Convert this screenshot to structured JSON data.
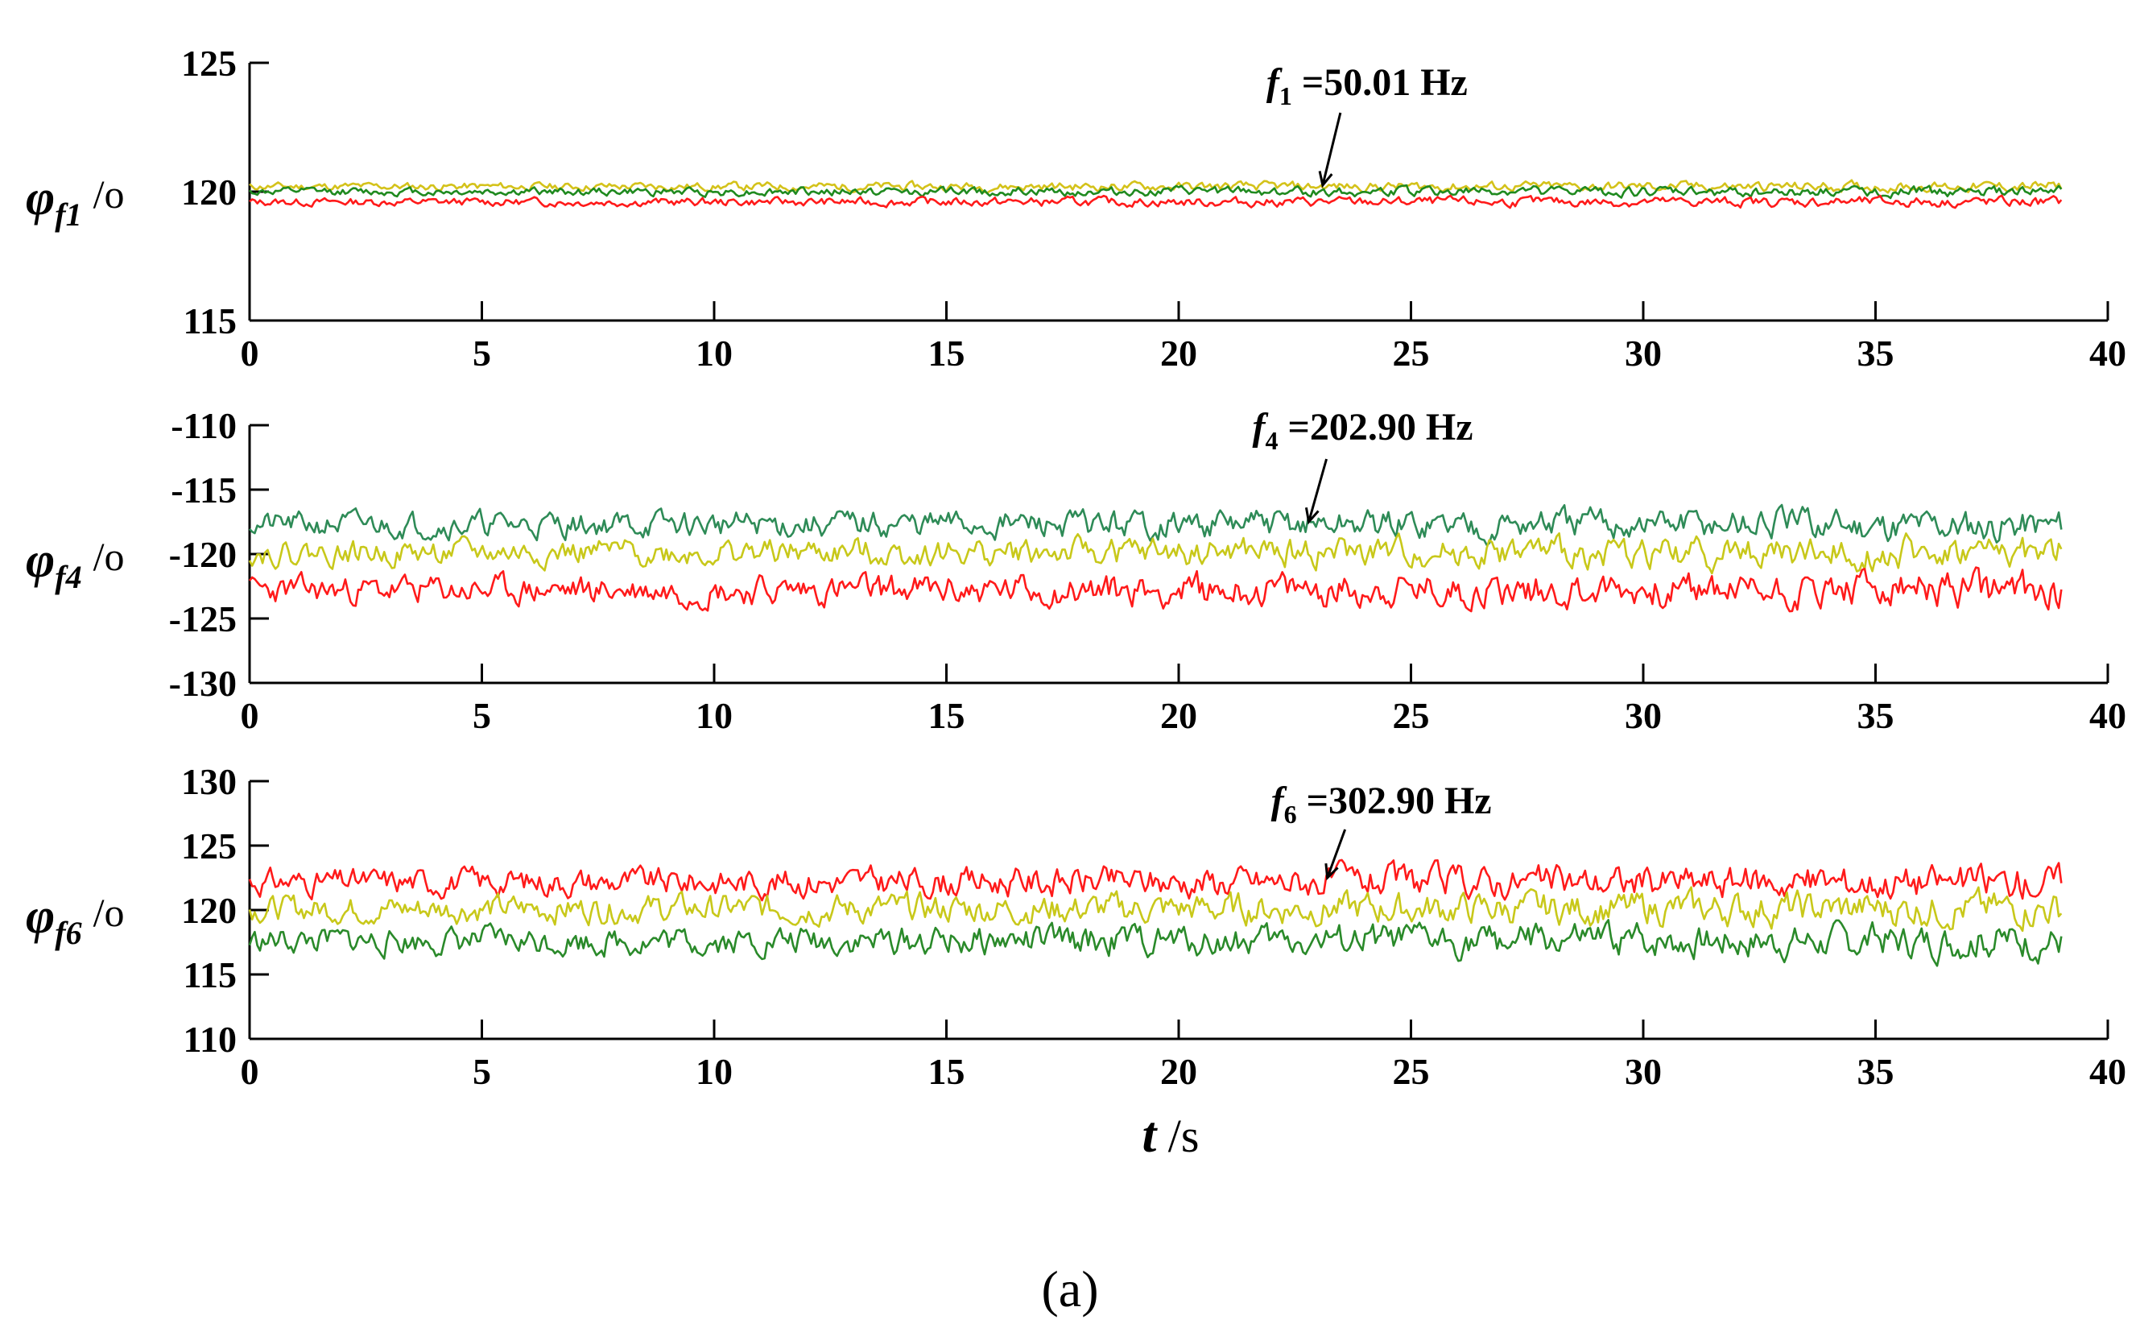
{
  "chart_data": [
    {
      "type": "line",
      "id": "phi_f1",
      "ylabel": {
        "symbol": "φ",
        "subscript": "f1",
        "unit": "/o"
      },
      "ylim": [
        115,
        125
      ],
      "yticks": [
        115,
        120,
        125
      ],
      "xlim": [
        0,
        40
      ],
      "xticks": [
        0,
        5,
        10,
        15,
        20,
        25,
        30,
        35,
        40
      ],
      "annotation": {
        "f": "f",
        "sub": "1",
        "rest": " =50.01 Hz",
        "x": 23.1,
        "y": 120
      },
      "series": [
        {
          "name": "yellow",
          "color": "#d4c21a",
          "mean": 120.2,
          "noise": 0.12,
          "seed": 11
        },
        {
          "name": "green",
          "color": "#1f8a1f",
          "mean": 120.0,
          "noise": 0.12,
          "seed": 12
        },
        {
          "name": "red",
          "color": "#ff1a1a",
          "mean": 119.6,
          "noise": 0.12,
          "seed": 13
        }
      ],
      "t_end": 39
    },
    {
      "type": "line",
      "id": "phi_f4",
      "ylabel": {
        "symbol": "φ",
        "subscript": "f4",
        "unit": "/o"
      },
      "ylim": [
        -130,
        -110
      ],
      "yticks": [
        -130,
        -125,
        -120,
        -115,
        -110
      ],
      "xlim": [
        0,
        40
      ],
      "xticks": [
        0,
        5,
        10,
        15,
        20,
        25,
        30,
        35,
        40
      ],
      "annotation": {
        "f": "f",
        "sub": "4",
        "rest": " =202.90 Hz",
        "x": 22.8,
        "y": -118
      },
      "series": [
        {
          "name": "teal",
          "color": "#2e8b57",
          "mean": -117.7,
          "noise": 0.75,
          "seed": 21
        },
        {
          "name": "yellow",
          "color": "#c8c81a",
          "mean": -119.9,
          "noise": 0.75,
          "seed": 22
        },
        {
          "name": "red",
          "color": "#ff1a1a",
          "mean": -122.8,
          "noise": 0.85,
          "seed": 23
        }
      ],
      "t_end": 39
    },
    {
      "type": "line",
      "id": "phi_f6",
      "ylabel": {
        "symbol": "φ",
        "subscript": "f6",
        "unit": "/o"
      },
      "ylim": [
        110,
        130
      ],
      "yticks": [
        110,
        115,
        120,
        125,
        130
      ],
      "xlim": [
        0,
        40
      ],
      "xticks": [
        0,
        5,
        10,
        15,
        20,
        25,
        30,
        35,
        40
      ],
      "xlabel": {
        "t": "t",
        "unit": " /s"
      },
      "annotation": {
        "f": "f",
        "sub": "6",
        "rest": " =302.90 Hz",
        "x": 23.2,
        "y": 122
      },
      "series": [
        {
          "name": "red",
          "color": "#ff1a1a",
          "mean": 122.2,
          "noise": 0.8,
          "seed": 31
        },
        {
          "name": "yellow",
          "color": "#c8c81a",
          "mean": 120.1,
          "noise": 0.8,
          "seed": 32
        },
        {
          "name": "green",
          "color": "#2a8a2a",
          "mean": 117.6,
          "noise": 0.8,
          "seed": 33
        }
      ],
      "t_end": 39
    }
  ],
  "caption": "(a)"
}
